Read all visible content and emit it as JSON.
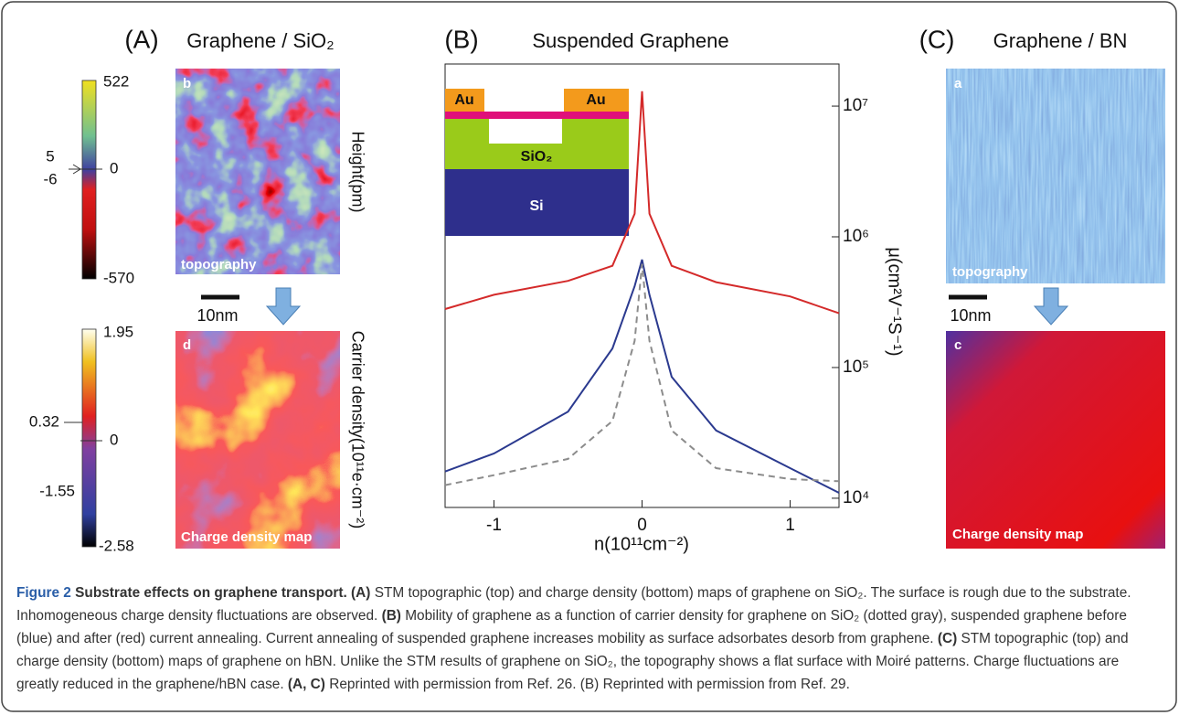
{
  "panel_a": {
    "label": "(A)",
    "title": "Graphene / SiO₂",
    "top_image": {
      "letter": "b",
      "caption": "topography"
    },
    "top_colorbar": {
      "ticks": [
        522,
        0,
        -570
      ],
      "side_ticks": [
        5,
        -6
      ],
      "label": "Height(pm)"
    },
    "scale_bar": "10nm",
    "bottom_image": {
      "letter": "d",
      "caption": "Charge density map"
    },
    "bottom_colorbar": {
      "right_ticks": [
        1.95,
        0,
        -2.58
      ],
      "left_ticks": [
        0.32,
        -1.55
      ],
      "label": "Carrier density(10¹¹e·cm⁻²)"
    }
  },
  "chart_data": {
    "type": "line",
    "panel_label": "(B)",
    "title": "Suspended Graphene",
    "x_label": "n(10¹¹cm⁻²)",
    "y_label": "μ(cm²V⁻¹S⁻¹)",
    "x": [
      -1.33,
      -1,
      -0.5,
      -0.2,
      -0.05,
      0,
      0.05,
      0.2,
      0.5,
      1,
      1.33
    ],
    "series": [
      {
        "color": "#d42a2a",
        "style": "solid",
        "values": [
          280000,
          360000,
          460000,
          600000,
          1500000,
          13000000,
          1500000,
          600000,
          450000,
          350000,
          260000
        ]
      },
      {
        "color": "#2b3a8f",
        "style": "solid",
        "values": [
          16000,
          22000,
          46000,
          140000,
          420000,
          670000,
          360000,
          85000,
          33000,
          17000,
          11000
        ]
      },
      {
        "color": "#8c8c8c",
        "style": "dashed",
        "values": [
          12600,
          15000,
          20000,
          39000,
          160000,
          620000,
          160000,
          33000,
          17000,
          14000,
          13500
        ]
      }
    ],
    "xlim": [
      -1.33,
      1.33
    ],
    "ylim": [
      8500,
      21000000
    ],
    "yscale": "log",
    "xticks": [
      -1,
      0,
      1
    ],
    "yticks": [
      {
        "value": 10000,
        "label": "10⁴"
      },
      {
        "value": 100000,
        "label": "10⁵"
      },
      {
        "value": 1000000,
        "label": "10⁶"
      },
      {
        "value": 10000000,
        "label": "10⁷"
      }
    ],
    "inset": {
      "labels": [
        "Au",
        "Au",
        "SiO₂",
        "Si"
      ]
    }
  },
  "panel_c": {
    "label": "(C)",
    "title": "Graphene / BN",
    "top_image": {
      "letter": "a",
      "caption": "topography"
    },
    "scale_bar": "10nm",
    "bottom_image": {
      "letter": "c",
      "caption": "Charge density map"
    }
  },
  "caption": {
    "segments": [
      {
        "text": "Figure 2",
        "bold": true,
        "color": "#2a5ea8"
      },
      {
        "text": " Substrate effects on graphene transport.",
        "bold": true
      },
      {
        "text": " (A)",
        "bold": true
      },
      {
        "text": " STM topographic (top) and charge density (bottom) maps of graphene on SiO₂. The surface is rough due to the substrate. Inhomogeneous charge density fluctuations are observed. "
      },
      {
        "text": "(B)",
        "bold": true
      },
      {
        "text": " Mobility of graphene as a function of carrier density for graphene on SiO₂ (dotted gray), suspended graphene before (blue) and after (red) current annealing. Current annealing of suspended graphene increases mobility as surface adsorbates desorb from graphene. "
      },
      {
        "text": "(C)",
        "bold": true
      },
      {
        "text": " STM topographic (top) and charge density (bottom) maps of graphene on hBN. Unlike the STM results of graphene on SiO₂, the topography shows a flat surface with Moiré patterns. Charge fluctuations are greatly reduced in the graphene/hBN case. "
      },
      {
        "text": "(A, C)",
        "bold": true
      },
      {
        "text": " Reprinted with permission from Ref. 26. (B) Reprinted with permission from Ref. 29."
      }
    ]
  }
}
